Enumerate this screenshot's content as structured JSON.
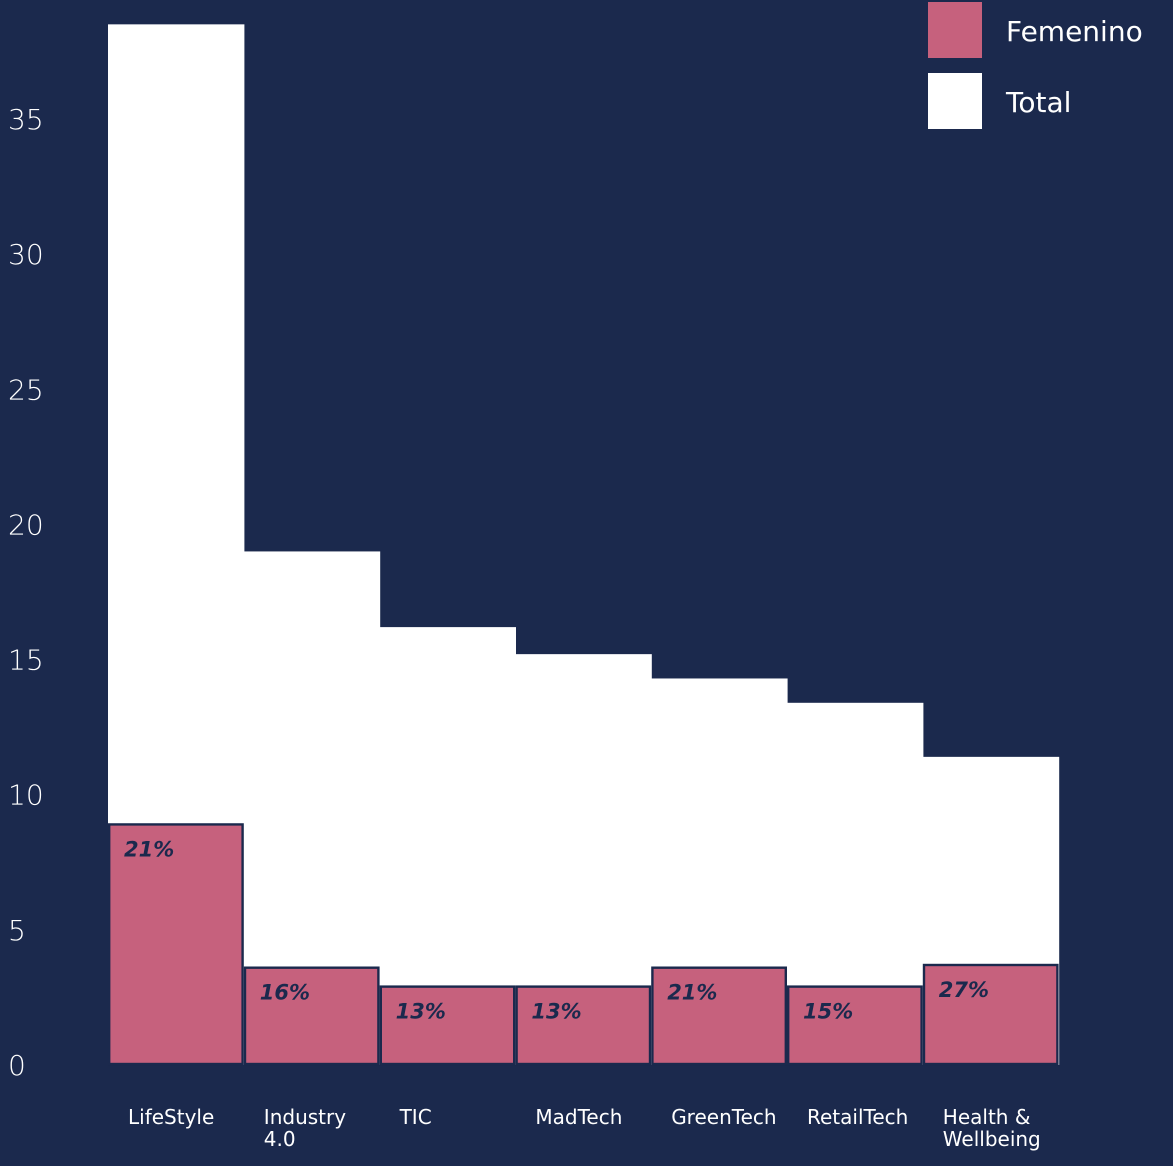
{
  "colors": {
    "background": "#1b294d",
    "total": "#ffffff",
    "femenino": "#c6617d",
    "pct_text": "#1b294d",
    "label_text": "#ffffff"
  },
  "chart_data": {
    "type": "bar",
    "title": "",
    "xlabel": "",
    "ylabel": "",
    "ylim": [
      0,
      38.5
    ],
    "yticks": [
      0,
      5,
      10,
      15,
      20,
      25,
      30,
      35
    ],
    "grid": false,
    "legend_position": "top-right",
    "categories": [
      [
        "LifeStyle"
      ],
      [
        "Industry",
        "4.0"
      ],
      [
        "TIC"
      ],
      [
        "MadTech"
      ],
      [
        "GreenTech"
      ],
      [
        "RetailTech"
      ],
      [
        "Health &",
        "Wellbeing"
      ]
    ],
    "series": [
      {
        "name": "Total",
        "color": "#ffffff",
        "values": [
          38.5,
          19.0,
          16.2,
          15.2,
          14.3,
          13.4,
          11.4
        ]
      },
      {
        "name": "Femenino",
        "color": "#c6617d",
        "values": [
          8.9,
          3.6,
          2.9,
          2.9,
          3.6,
          2.9,
          3.7
        ]
      }
    ],
    "percent_labels": [
      "21%",
      "16%",
      "13%",
      "13%",
      "21%",
      "15%",
      "27%"
    ]
  }
}
